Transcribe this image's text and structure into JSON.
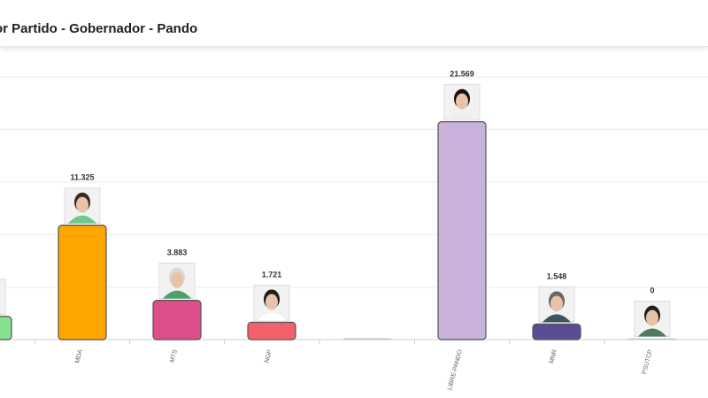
{
  "header": {
    "title": "or Partido - Gobernador - Pando"
  },
  "chart_data": {
    "type": "bar",
    "title": "or Partido - Gobernador - Pando",
    "xlabel": "",
    "ylabel": "",
    "ylim": [
      0,
      26000
    ],
    "grid": true,
    "gridline_values": [
      0,
      5200,
      10400,
      15600,
      20800,
      26000
    ],
    "categories": [
      "",
      "MDA",
      "MTS",
      "NGP",
      "",
      "LIBRE-PANDO",
      "MNR",
      "PSUTCP"
    ],
    "values": [
      2300,
      11325,
      3883,
      1721,
      0,
      21569,
      1548,
      0
    ],
    "value_labels": [
      "",
      "11.325",
      "3.883",
      "1.721",
      "",
      "21.569",
      "1.548",
      "0"
    ],
    "colors": [
      "#86e08f",
      "#ffa500",
      "#dd4f8c",
      "#f4606b",
      "#9a9a9a",
      "#c9b2d9",
      "#5a4d93",
      "#a8a8a8"
    ],
    "candidate_photo_shown": [
      true,
      true,
      true,
      true,
      false,
      true,
      true,
      true
    ]
  }
}
